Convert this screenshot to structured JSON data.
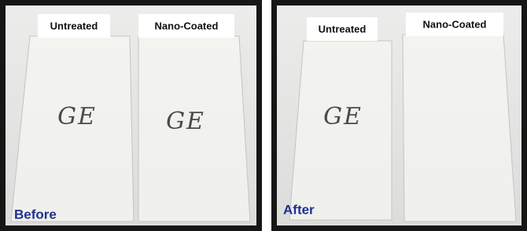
{
  "panels": [
    {
      "label": "Before",
      "slides": [
        {
          "label": "Untreated",
          "marking": "GE"
        },
        {
          "label": "Nano-Coated",
          "marking": "GE"
        }
      ]
    },
    {
      "label": "After",
      "slides": [
        {
          "label": "Untreated",
          "marking": "GE"
        },
        {
          "label": "Nano-Coated"
        }
      ]
    }
  ]
}
